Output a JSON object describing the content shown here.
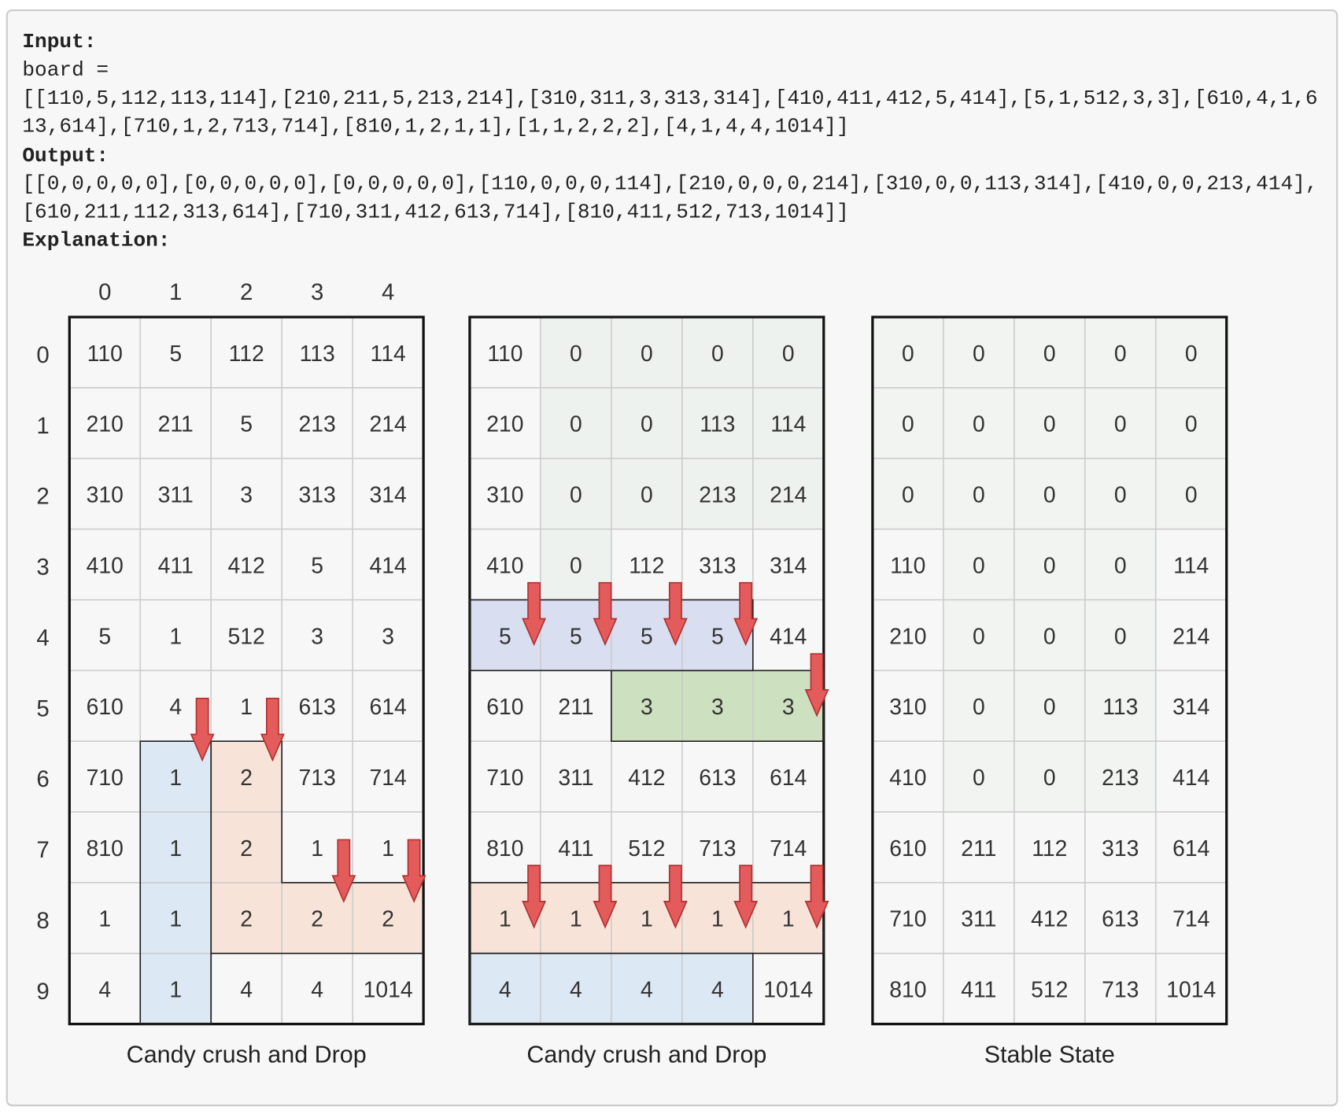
{
  "input_label": "Input:",
  "board_label": "board =",
  "input_lines": [
    "[[110,5,112,113,114],[210,211,5,213,214],[310,311,3,313,314],[410,411,412,5,414],[5,1,512,3,3],[610,4,1,6",
    "13,614],[710,1,2,713,714],[810,1,2,1,1],[1,1,2,2,2],[4,1,4,4,1014]]"
  ],
  "output_label": "Output:",
  "output_lines": [
    "[[0,0,0,0,0],[0,0,0,0,0],[0,0,0,0,0],[110,0,0,0,114],[210,0,0,0,214],[310,0,0,113,314],[410,0,0,213,414],",
    "[610,211,112,313,614],[710,311,412,613,714],[810,411,512,713,1014]]"
  ],
  "explanation_label": "Explanation:",
  "column_headers": [
    "0",
    "1",
    "2",
    "3",
    "4"
  ],
  "row_headers": [
    "0",
    "1",
    "2",
    "3",
    "4",
    "5",
    "6",
    "7",
    "8",
    "9"
  ],
  "grids": [
    {
      "caption": "Candy crush and Drop",
      "cells": [
        [
          110,
          5,
          112,
          113,
          114
        ],
        [
          210,
          211,
          5,
          213,
          214
        ],
        [
          310,
          311,
          3,
          313,
          314
        ],
        [
          410,
          411,
          412,
          5,
          414
        ],
        [
          5,
          1,
          512,
          3,
          3
        ],
        [
          610,
          4,
          1,
          613,
          614
        ],
        [
          710,
          1,
          2,
          713,
          714
        ],
        [
          810,
          1,
          2,
          1,
          1
        ],
        [
          1,
          1,
          2,
          2,
          2
        ],
        [
          4,
          1,
          4,
          4,
          1014
        ]
      ]
    },
    {
      "caption": "Candy crush and Drop",
      "cells": [
        [
          110,
          0,
          0,
          0,
          0
        ],
        [
          210,
          0,
          0,
          113,
          114
        ],
        [
          310,
          0,
          0,
          213,
          214
        ],
        [
          410,
          0,
          112,
          313,
          314
        ],
        [
          5,
          5,
          5,
          5,
          414
        ],
        [
          610,
          211,
          3,
          3,
          3
        ],
        [
          710,
          311,
          412,
          613,
          614
        ],
        [
          810,
          411,
          512,
          713,
          714
        ],
        [
          1,
          1,
          1,
          1,
          1
        ],
        [
          4,
          4,
          4,
          4,
          1014
        ]
      ]
    },
    {
      "caption": "Stable State",
      "cells": [
        [
          0,
          0,
          0,
          0,
          0
        ],
        [
          0,
          0,
          0,
          0,
          0
        ],
        [
          0,
          0,
          0,
          0,
          0
        ],
        [
          110,
          0,
          0,
          0,
          114
        ],
        [
          210,
          0,
          0,
          0,
          214
        ],
        [
          310,
          0,
          0,
          113,
          314
        ],
        [
          410,
          0,
          0,
          213,
          414
        ],
        [
          610,
          211,
          112,
          313,
          614
        ],
        [
          710,
          311,
          412,
          613,
          714
        ],
        [
          810,
          411,
          512,
          713,
          1014
        ]
      ]
    }
  ]
}
